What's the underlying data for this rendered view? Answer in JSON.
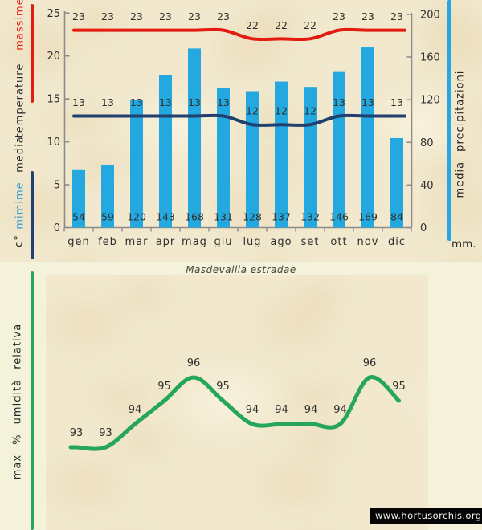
{
  "title": "Masdevallia estradae",
  "site": "www.hortusorchis.org",
  "side_labels": {
    "massime": "massime",
    "temperature": "temperature",
    "media": "media",
    "mimime": "mimime",
    "celsius": "c°",
    "precipitazioni": "media precipitazioni",
    "mm": "mm.",
    "humidity": "max % umidità relativa"
  },
  "colors": {
    "bar_cyan": "#23a9e0",
    "max_line_red": "#e41b10",
    "min_line_navy": "#21406f",
    "humidity_green": "#26a658",
    "axis_gray": "#8c8c8c",
    "massime_text": "#e8251a",
    "mimime_text": "#2e9bd6",
    "background_flat": "#f5f2dc",
    "background_panel": "#f1e8cd"
  },
  "chart_data": [
    {
      "type": "bar+line",
      "title": "Masdevallia estradae",
      "categories": [
        "gen",
        "feb",
        "mar",
        "apr",
        "mag",
        "giu",
        "lug",
        "ago",
        "set",
        "ott",
        "nov",
        "dic"
      ],
      "series": [
        {
          "name": "massime",
          "kind": "line",
          "axis": "left",
          "color": "#e41b10",
          "values": [
            23,
            23,
            23,
            23,
            23,
            23,
            22,
            22,
            22,
            23,
            23,
            23
          ]
        },
        {
          "name": "mimime",
          "kind": "line",
          "axis": "left",
          "color": "#21406f",
          "values": [
            13,
            13,
            13,
            13,
            13,
            13,
            12,
            12,
            12,
            13,
            13,
            13
          ]
        },
        {
          "name": "media precipitazioni",
          "kind": "bar",
          "axis": "right",
          "color": "#23a9e0",
          "values": [
            54,
            59,
            120,
            143,
            168,
            131,
            128,
            137,
            132,
            146,
            169,
            84
          ]
        }
      ],
      "left_axis": {
        "title": "media temperature c°",
        "ticks": [
          25,
          20,
          15,
          10,
          5,
          0
        ],
        "range": [
          0,
          25
        ]
      },
      "right_axis": {
        "title": "media precipitazioni",
        "unit": "mm.",
        "ticks": [
          200,
          160,
          120,
          80,
          40,
          0
        ],
        "range": [
          0,
          200
        ]
      },
      "grid": false,
      "legend_position": "left-and-right-rotated"
    },
    {
      "type": "line",
      "name": "max % umidità relativa",
      "color": "#26a658",
      "categories": [
        "gen",
        "feb",
        "mar",
        "apr",
        "mag",
        "giu",
        "lug",
        "ago",
        "set",
        "ott",
        "nov",
        "dic"
      ],
      "values": [
        93,
        93,
        94,
        95,
        96,
        95,
        94,
        94,
        94,
        94,
        96,
        95
      ],
      "ylim": [
        92,
        97
      ],
      "grid": false
    }
  ]
}
